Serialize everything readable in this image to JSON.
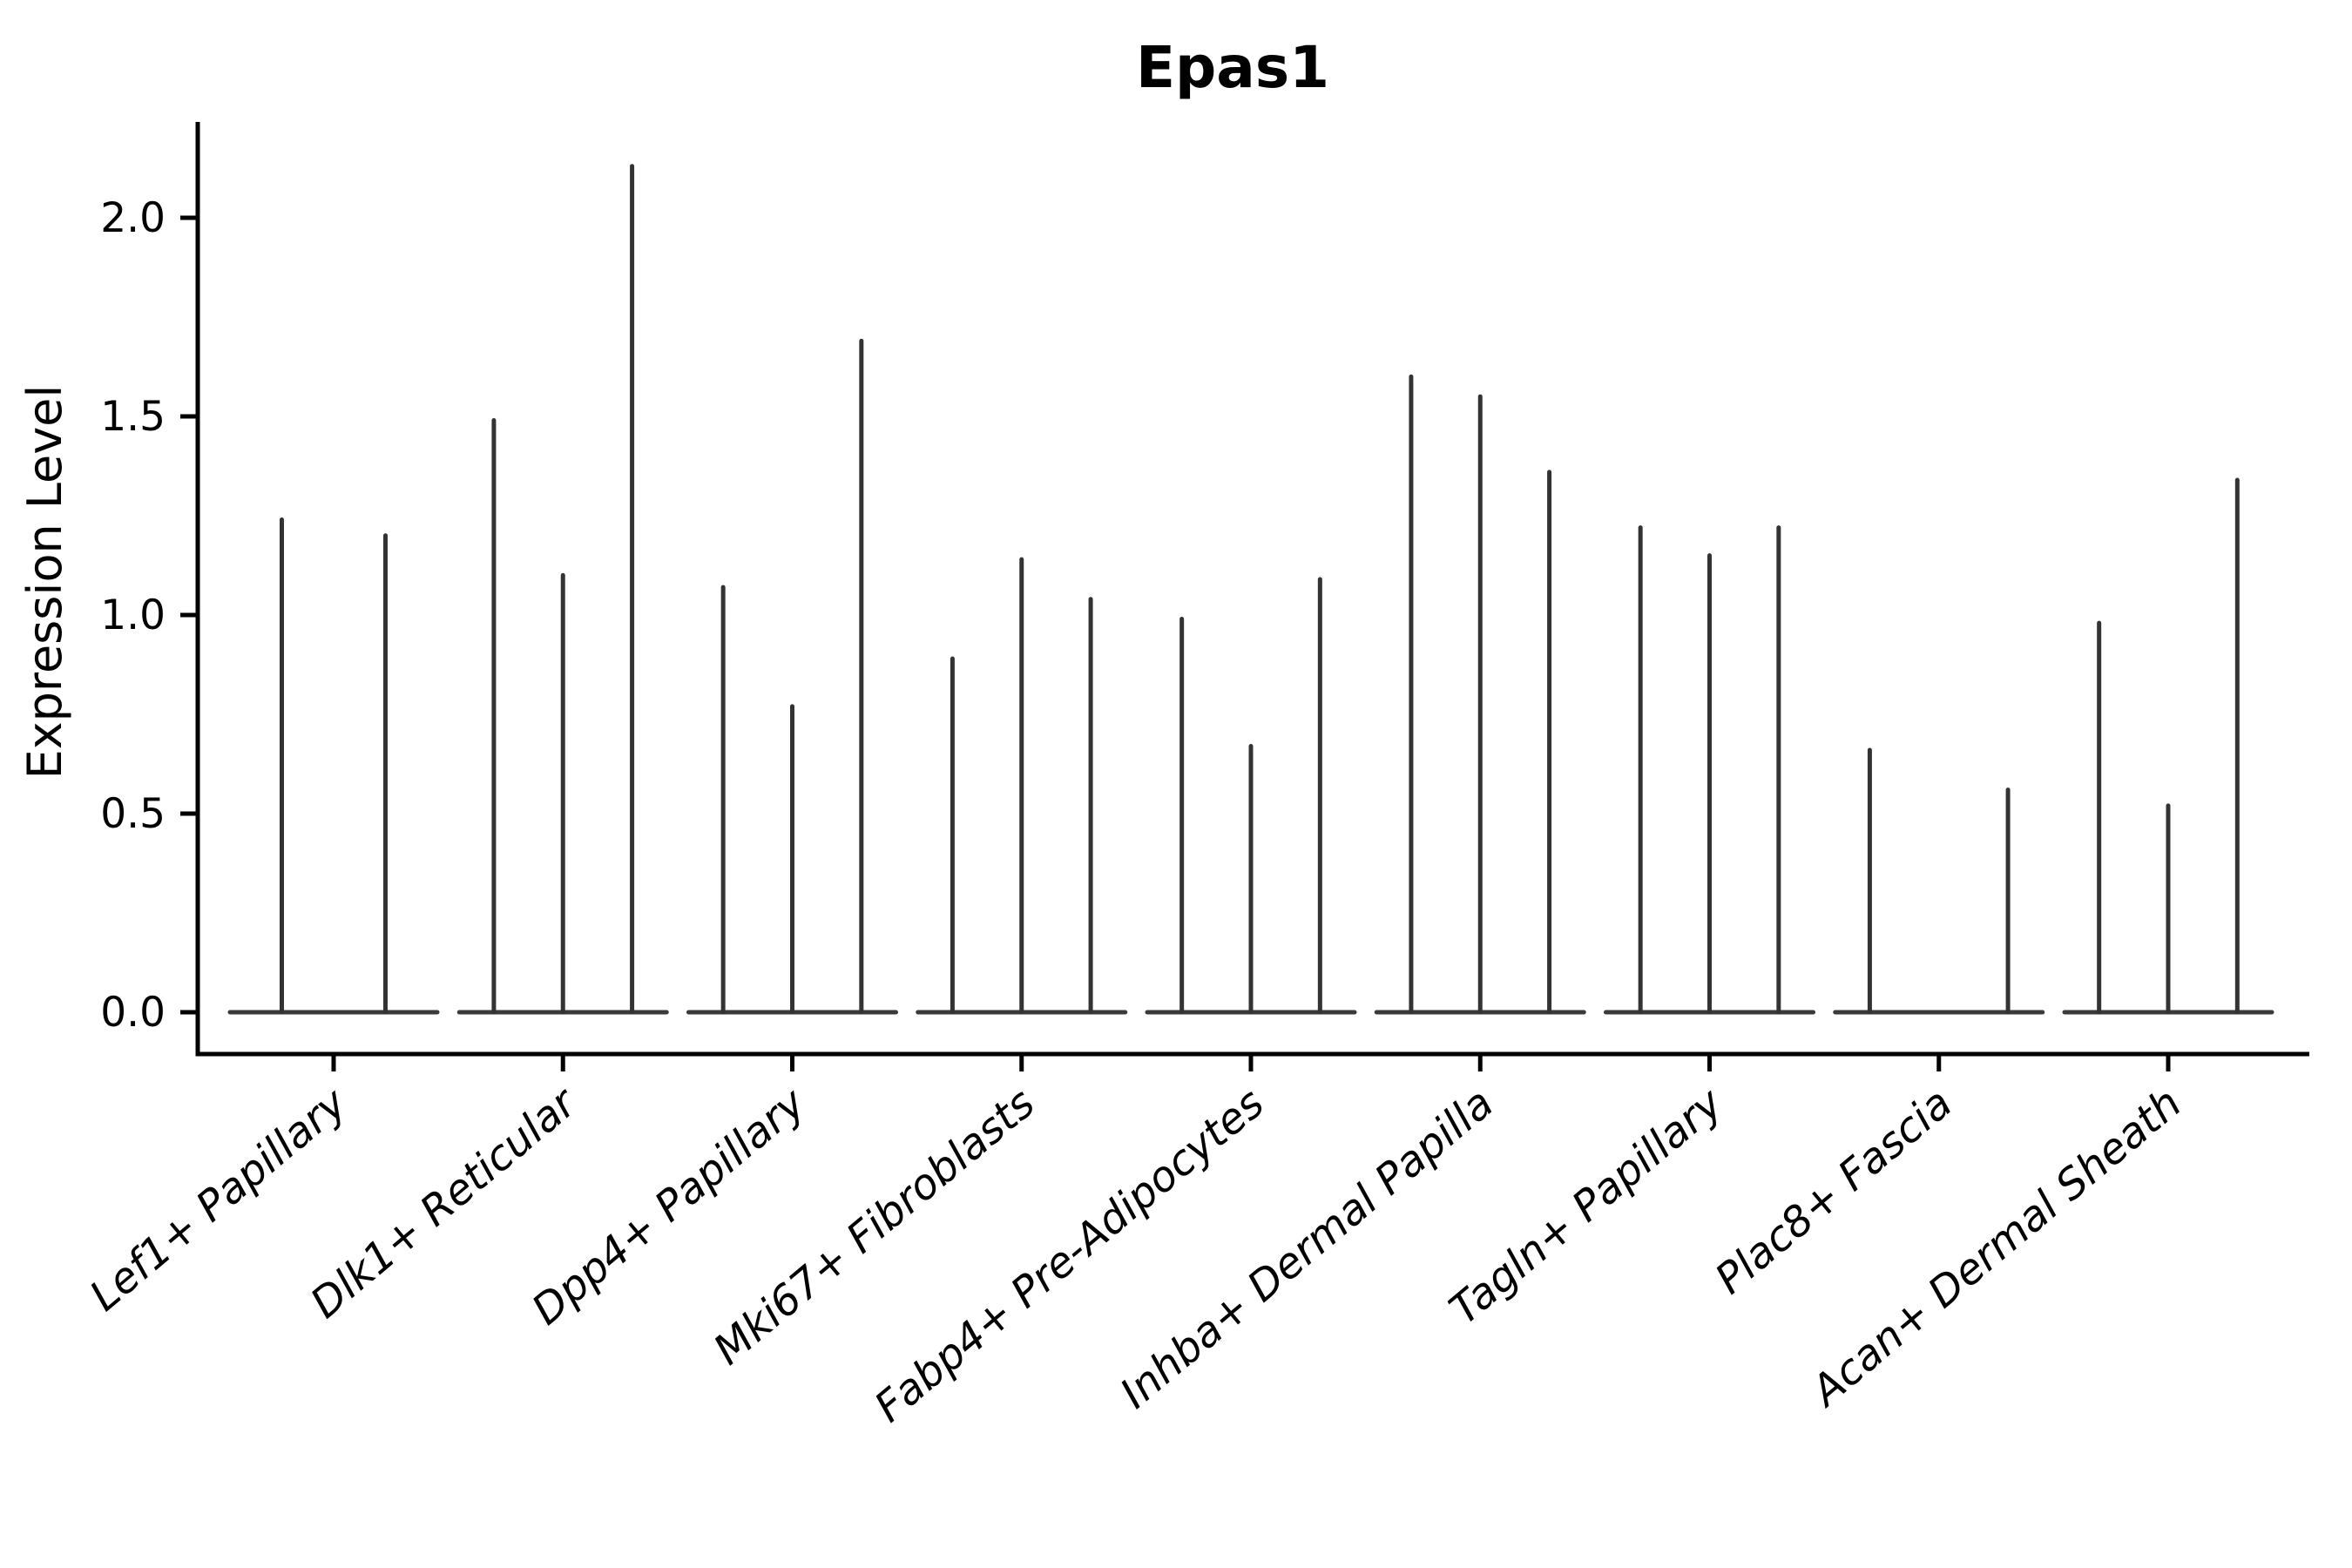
{
  "chart_data": {
    "type": "violin",
    "title": "Epas1",
    "xlabel": "",
    "ylabel": "Expression Level",
    "legend": null,
    "grid": false,
    "ylim": [
      -0.105,
      2.24
    ],
    "ytick_values": [
      0.0,
      0.5,
      1.0,
      1.5,
      2.0
    ],
    "ytick_labels": [
      "0.0",
      "0.5",
      "1.0",
      "1.5",
      "2.0"
    ],
    "categories": [
      "Lef1+ Papillary",
      "Dlk1+ Reticular",
      "Dpp4+ Papillary",
      "Mki67+ Fibroblasts",
      "Fabp4+ Pre-Adipocytes",
      "Inhba+ Dermal Papilla",
      "Tagln+ Papillary",
      "Plac8+ Fascia",
      "Acan+ Dermal Sheath"
    ],
    "series": [
      {
        "category": "Lef1+ Papillary",
        "violin_maxima": [
          1.24,
          1.2
        ]
      },
      {
        "category": "Dlk1+ Reticular",
        "violin_maxima": [
          1.49,
          1.1,
          2.13
        ]
      },
      {
        "category": "Dpp4+ Papillary",
        "violin_maxima": [
          1.07,
          0.77,
          1.69
        ]
      },
      {
        "category": "Mki67+ Fibroblasts",
        "violin_maxima": [
          0.89,
          1.14,
          1.04
        ]
      },
      {
        "category": "Fabp4+ Pre-Adipocytes",
        "violin_maxima": [
          0.99,
          0.67,
          1.09
        ]
      },
      {
        "category": "Inhba+ Dermal Papilla",
        "violin_maxima": [
          1.6,
          1.55,
          1.36
        ]
      },
      {
        "category": "Tagln+ Papillary",
        "violin_maxima": [
          1.22,
          1.15,
          1.22
        ]
      },
      {
        "category": "Plac8+ Fascia",
        "violin_maxima": [
          0.66,
          0.0,
          0.56
        ]
      },
      {
        "category": "Acan+ Dermal Sheath",
        "violin_maxima": [
          0.98,
          0.52,
          1.34
        ]
      }
    ],
    "colors": {
      "violin_stroke": "#333333",
      "baseline_stroke": "#3a3a3a",
      "axis": "#000000",
      "background": "#ffffff"
    }
  }
}
